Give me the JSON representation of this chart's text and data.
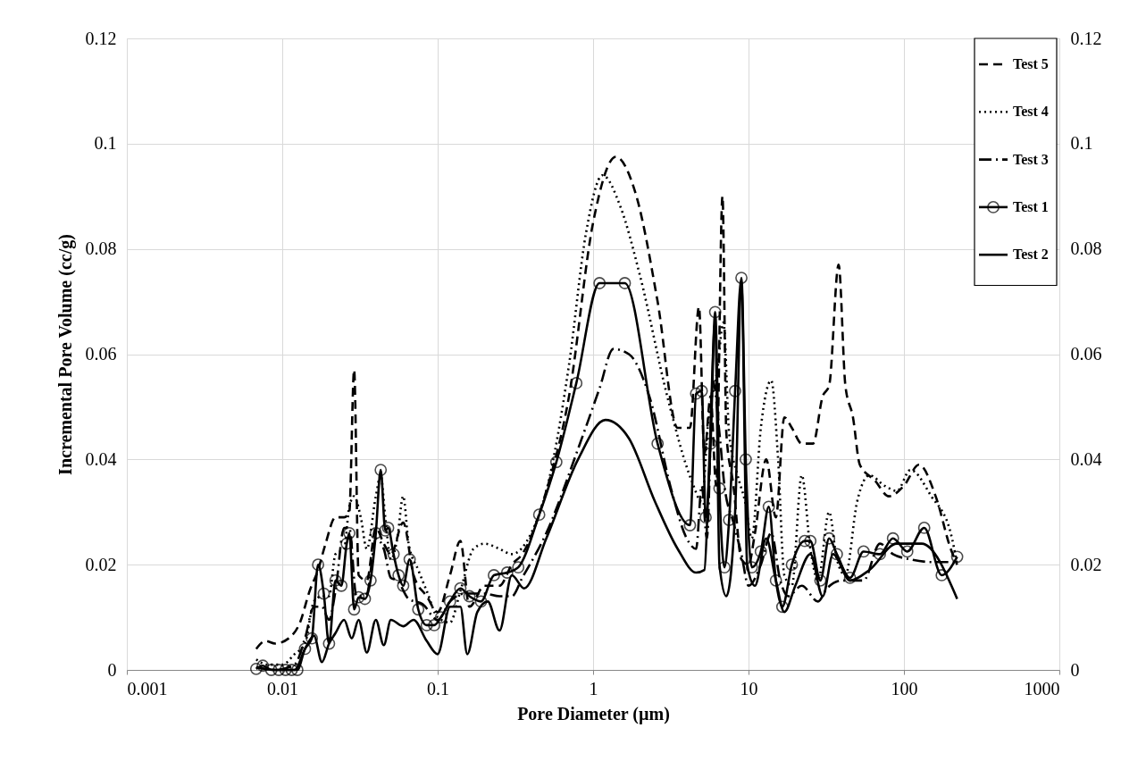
{
  "chart_data": {
    "type": "line",
    "xlabel": "Pore Diameter (µm)",
    "ylabel": "Incremental Pore Volume (cc/g)",
    "log": "x",
    "xlim": [
      0.001,
      1000
    ],
    "xticks": [
      0.001,
      0.01,
      0.1,
      1,
      10,
      100,
      1000
    ],
    "ylim": [
      0,
      0.12
    ],
    "yticks": [
      0,
      0.02,
      0.04,
      0.06,
      0.08,
      0.1,
      0.12
    ],
    "y2lim": [
      0,
      0.12
    ],
    "y2ticks": [
      0,
      0.02,
      0.04,
      0.06,
      0.08,
      0.1,
      0.12
    ],
    "grid": true,
    "legend": "top right",
    "series": [
      {
        "name": "Test 5",
        "color": "#000000",
        "line_style": "dashed",
        "marker": "none",
        "x": [
          0.0068,
          0.0078,
          0.009,
          0.011,
          0.013,
          0.015,
          0.017,
          0.019,
          0.022,
          0.025,
          0.027,
          0.029,
          0.031,
          0.035,
          0.04,
          0.045,
          0.05,
          0.06,
          0.07,
          0.085,
          0.1,
          0.12,
          0.14,
          0.16,
          0.2,
          0.25,
          0.3,
          0.35,
          0.5,
          0.7,
          1.0,
          1.4,
          1.9,
          2.6,
          3.5,
          4.2,
          4.8,
          5.2,
          5.7,
          6.2,
          6.8,
          7.2,
          8,
          9,
          10,
          11,
          13,
          15,
          17,
          19,
          22,
          26,
          30,
          33,
          38,
          42,
          47,
          52,
          65,
          80,
          100,
          125,
          160,
          200,
          220
        ],
        "values": [
          0.004,
          0.0055,
          0.005,
          0.006,
          0.009,
          0.015,
          0.019,
          0.024,
          0.029,
          0.029,
          0.03,
          0.057,
          0.018,
          0.017,
          0.027,
          0.024,
          0.022,
          0.028,
          0.018,
          0.014,
          0.011,
          0.018,
          0.0245,
          0.012,
          0.016,
          0.016,
          0.02,
          0.022,
          0.034,
          0.052,
          0.085,
          0.0975,
          0.09,
          0.07,
          0.046,
          0.046,
          0.069,
          0.041,
          0.052,
          0.035,
          0.09,
          0.045,
          0.035,
          0.021,
          0.02,
          0.026,
          0.04,
          0.029,
          0.048,
          0.046,
          0.043,
          0.043,
          0.052,
          0.054,
          0.077,
          0.054,
          0.048,
          0.039,
          0.036,
          0.033,
          0.035,
          0.039,
          0.033,
          0.023,
          0.02
        ]
      },
      {
        "name": "Test 4",
        "color": "#000000",
        "line_style": "dotted",
        "marker": "none",
        "x": [
          0.0068,
          0.008,
          0.01,
          0.012,
          0.014,
          0.016,
          0.018,
          0.02,
          0.022,
          0.025,
          0.027,
          0.029,
          0.032,
          0.035,
          0.04,
          0.043,
          0.046,
          0.05,
          0.055,
          0.06,
          0.065,
          0.075,
          0.085,
          0.1,
          0.12,
          0.14,
          0.17,
          0.2,
          0.25,
          0.3,
          0.4,
          0.5,
          0.7,
          0.9,
          1.15,
          1.5,
          2.0,
          3.0,
          4.3,
          5.0,
          5.5,
          6.3,
          6.9,
          7.5,
          8.5,
          9.5,
          10.5,
          12,
          14,
          15.5,
          17,
          19,
          22,
          25,
          28,
          33,
          37,
          42,
          50,
          60,
          75,
          90,
          110,
          150,
          200,
          220
        ],
        "values": [
          0.002,
          0.001,
          0.001,
          0.003,
          0.005,
          0.013,
          0.014,
          0.014,
          0.022,
          0.023,
          0.031,
          0.033,
          0.029,
          0.023,
          0.033,
          0.037,
          0.029,
          0.021,
          0.025,
          0.033,
          0.024,
          0.019,
          0.015,
          0.01,
          0.009,
          0.015,
          0.023,
          0.024,
          0.023,
          0.022,
          0.026,
          0.034,
          0.058,
          0.083,
          0.094,
          0.088,
          0.075,
          0.052,
          0.036,
          0.032,
          0.047,
          0.057,
          0.066,
          0.045,
          0.037,
          0.032,
          0.025,
          0.046,
          0.055,
          0.04,
          0.018,
          0.016,
          0.037,
          0.023,
          0.017,
          0.03,
          0.021,
          0.018,
          0.032,
          0.037,
          0.035,
          0.034,
          0.038,
          0.033,
          0.026,
          0.02
        ]
      },
      {
        "name": "Test 3",
        "color": "#000000",
        "line_style": "dashdot",
        "marker": "none",
        "x": [
          0.0068,
          0.009,
          0.012,
          0.014,
          0.016,
          0.018,
          0.02,
          0.022,
          0.025,
          0.027,
          0.03,
          0.035,
          0.04,
          0.045,
          0.05,
          0.055,
          0.065,
          0.08,
          0.1,
          0.12,
          0.15,
          0.2,
          0.25,
          0.3,
          0.35,
          0.5,
          0.8,
          1.1,
          1.35,
          1.7,
          2.3,
          3.2,
          4.0,
          4.6,
          5.0,
          5.4,
          5.9,
          6.5,
          7.0,
          8,
          9,
          10,
          12,
          14,
          16,
          18,
          22,
          28,
          32,
          40,
          55,
          70,
          85,
          110,
          150,
          220
        ],
        "values": [
          0.0005,
          0,
          0.001,
          0.006,
          0.012,
          0.012,
          0.0095,
          0.015,
          0.027,
          0.027,
          0.014,
          0.0145,
          0.025,
          0.023,
          0.0175,
          0.017,
          0.0135,
          0.0125,
          0.0095,
          0.013,
          0.0145,
          0.0145,
          0.014,
          0.014,
          0.0175,
          0.026,
          0.042,
          0.0535,
          0.061,
          0.06,
          0.052,
          0.034,
          0.025,
          0.023,
          0.035,
          0.025,
          0.055,
          0.045,
          0.035,
          0.028,
          0.022,
          0.016,
          0.02,
          0.026,
          0.017,
          0.014,
          0.016,
          0.013,
          0.0155,
          0.017,
          0.017,
          0.024,
          0.022,
          0.021,
          0.0205,
          0.0205
        ]
      },
      {
        "name": "Test 1",
        "color": "#000000",
        "line_style": "solid",
        "marker": "circle",
        "x": [
          0.0068,
          0.0075,
          0.0085,
          0.0095,
          0.0105,
          0.0115,
          0.0125,
          0.014,
          0.0155,
          0.017,
          0.0185,
          0.02,
          0.022,
          0.024,
          0.026,
          0.027,
          0.029,
          0.031,
          0.034,
          0.037,
          0.04,
          0.043,
          0.046,
          0.048,
          0.052,
          0.056,
          0.06,
          0.066,
          0.075,
          0.085,
          0.095,
          0.105,
          0.12,
          0.14,
          0.16,
          0.19,
          0.23,
          0.28,
          0.33,
          0.45,
          0.58,
          0.78,
          1.1,
          1.6,
          2.6,
          4.2,
          4.6,
          5.0,
          5.3,
          5.7,
          6.1,
          6.5,
          7.0,
          7.5,
          8.2,
          9.0,
          9.6,
          10.5,
          12,
          13.5,
          15,
          16.5,
          19,
          23,
          25,
          29,
          33,
          37,
          45,
          55,
          70,
          85,
          105,
          135,
          175,
          220
        ],
        "values": [
          0.0002,
          0.0008,
          0,
          0,
          0,
          0,
          0,
          0.004,
          0.006,
          0.02,
          0.0145,
          0.005,
          0.017,
          0.016,
          0.024,
          0.026,
          0.0115,
          0.0138,
          0.0135,
          0.017,
          0.026,
          0.038,
          0.0265,
          0.027,
          0.022,
          0.018,
          0.016,
          0.021,
          0.0115,
          0.0085,
          0.0085,
          0.01,
          0.013,
          0.0155,
          0.014,
          0.013,
          0.018,
          0.0185,
          0.0195,
          0.0295,
          0.0395,
          0.0545,
          0.0735,
          0.0735,
          0.043,
          0.0275,
          0.0525,
          0.053,
          0.029,
          0.043,
          0.068,
          0.0345,
          0.0195,
          0.0285,
          0.053,
          0.0745,
          0.04,
          0.0195,
          0.0225,
          0.031,
          0.017,
          0.012,
          0.02,
          0.0245,
          0.0245,
          0.017,
          0.025,
          0.022,
          0.0175,
          0.0225,
          0.022,
          0.025,
          0.0225,
          0.027,
          0.018,
          0.0215
        ]
      },
      {
        "name": "Test 2",
        "color": "#000000",
        "line_style": "solid",
        "marker": "none",
        "x": [
          0.0068,
          0.009,
          0.012,
          0.014,
          0.016,
          0.018,
          0.02,
          0.022,
          0.025,
          0.028,
          0.031,
          0.035,
          0.04,
          0.045,
          0.05,
          0.06,
          0.07,
          0.085,
          0.1,
          0.12,
          0.14,
          0.155,
          0.18,
          0.21,
          0.25,
          0.3,
          0.36,
          0.5,
          0.8,
          1.2,
          1.7,
          2.5,
          3.5,
          4.6,
          5.2,
          5.6,
          6.1,
          6.5,
          7.2,
          8.2,
          9.0,
          9.8,
          11,
          13,
          15,
          17,
          20,
          25,
          30,
          35,
          45,
          60,
          90,
          130,
          220
        ],
        "values": [
          0.0005,
          0,
          0,
          0.004,
          0.0065,
          0.0015,
          0.005,
          0.007,
          0.0095,
          0.006,
          0.0095,
          0.0033,
          0.0095,
          0.0047,
          0.0095,
          0.0083,
          0.0095,
          0.0055,
          0.003,
          0.012,
          0.012,
          0.003,
          0.011,
          0.013,
          0.0075,
          0.018,
          0.0155,
          0.025,
          0.04,
          0.0475,
          0.044,
          0.032,
          0.023,
          0.0185,
          0.019,
          0.04,
          0.066,
          0.02,
          0.014,
          0.03,
          0.0735,
          0.02,
          0.016,
          0.025,
          0.017,
          0.011,
          0.016,
          0.022,
          0.014,
          0.022,
          0.017,
          0.019,
          0.024,
          0.024,
          0.0135
        ]
      }
    ]
  }
}
